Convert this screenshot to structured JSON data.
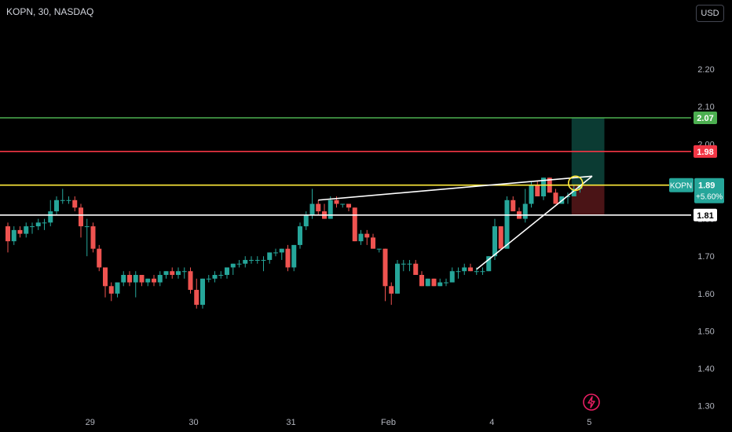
{
  "header": {
    "symbol": "KOPN, 30, NASDAQ"
  },
  "currency": "USD",
  "badge": {
    "ticker": "KOPN",
    "price": "1.89",
    "change": "+5.60%"
  },
  "colors": {
    "up": "#26a69a",
    "down": "#ef5350",
    "background": "#000000",
    "green_line": "#4caf50",
    "red_line": "#f23645",
    "yellow_line": "#ffeb3b",
    "white_line": "#ffffff",
    "target_zone": "#0b3b33",
    "stop_zone": "#4a1416",
    "axis_text": "#b2b5be"
  },
  "chart_data": {
    "type": "candlestick",
    "y_range": [
      1.23,
      2.28
    ],
    "y_ticks": [
      1.3,
      1.4,
      1.5,
      1.6,
      1.7,
      1.8,
      1.9,
      2.0,
      2.1,
      2.2
    ],
    "x_ticks": [
      {
        "label": "29",
        "index": 13
      },
      {
        "label": "30",
        "index": 30
      },
      {
        "label": "31",
        "index": 46
      },
      {
        "label": "Feb",
        "index": 62
      },
      {
        "label": "4",
        "index": 79
      },
      {
        "label": "5",
        "index": 95
      }
    ],
    "candles": [
      [
        1.78,
        1.79,
        1.71,
        1.74
      ],
      [
        1.74,
        1.78,
        1.73,
        1.77
      ],
      [
        1.77,
        1.78,
        1.75,
        1.76
      ],
      [
        1.76,
        1.79,
        1.75,
        1.78
      ],
      [
        1.78,
        1.79,
        1.76,
        1.78
      ],
      [
        1.78,
        1.8,
        1.77,
        1.79
      ],
      [
        1.79,
        1.8,
        1.77,
        1.79
      ],
      [
        1.79,
        1.85,
        1.78,
        1.82
      ],
      [
        1.82,
        1.86,
        1.81,
        1.85
      ],
      [
        1.85,
        1.88,
        1.84,
        1.85
      ],
      [
        1.85,
        1.86,
        1.84,
        1.85
      ],
      [
        1.85,
        1.86,
        1.82,
        1.83
      ],
      [
        1.83,
        1.84,
        1.75,
        1.78
      ],
      [
        1.78,
        1.8,
        1.7,
        1.78
      ],
      [
        1.78,
        1.79,
        1.71,
        1.72
      ],
      [
        1.72,
        1.73,
        1.66,
        1.67
      ],
      [
        1.67,
        1.67,
        1.59,
        1.62
      ],
      [
        1.62,
        1.63,
        1.58,
        1.6
      ],
      [
        1.6,
        1.63,
        1.59,
        1.63
      ],
      [
        1.63,
        1.66,
        1.62,
        1.65
      ],
      [
        1.65,
        1.66,
        1.62,
        1.63
      ],
      [
        1.63,
        1.66,
        1.59,
        1.65
      ],
      [
        1.65,
        1.65,
        1.62,
        1.63
      ],
      [
        1.63,
        1.64,
        1.62,
        1.64
      ],
      [
        1.64,
        1.65,
        1.62,
        1.63
      ],
      [
        1.63,
        1.66,
        1.62,
        1.65
      ],
      [
        1.65,
        1.66,
        1.64,
        1.66
      ],
      [
        1.66,
        1.67,
        1.64,
        1.65
      ],
      [
        1.65,
        1.67,
        1.64,
        1.66
      ],
      [
        1.66,
        1.67,
        1.64,
        1.66
      ],
      [
        1.66,
        1.67,
        1.6,
        1.61
      ],
      [
        1.61,
        1.64,
        1.56,
        1.57
      ],
      [
        1.57,
        1.64,
        1.56,
        1.64
      ],
      [
        1.64,
        1.65,
        1.63,
        1.64
      ],
      [
        1.64,
        1.66,
        1.63,
        1.65
      ],
      [
        1.65,
        1.66,
        1.64,
        1.65
      ],
      [
        1.65,
        1.67,
        1.64,
        1.67
      ],
      [
        1.67,
        1.68,
        1.65,
        1.68
      ],
      [
        1.68,
        1.69,
        1.67,
        1.68
      ],
      [
        1.68,
        1.7,
        1.67,
        1.69
      ],
      [
        1.69,
        1.7,
        1.68,
        1.69
      ],
      [
        1.69,
        1.7,
        1.68,
        1.69
      ],
      [
        1.69,
        1.7,
        1.66,
        1.69
      ],
      [
        1.69,
        1.71,
        1.68,
        1.71
      ],
      [
        1.71,
        1.72,
        1.7,
        1.71
      ],
      [
        1.71,
        1.72,
        1.69,
        1.72
      ],
      [
        1.72,
        1.73,
        1.66,
        1.67
      ],
      [
        1.67,
        1.73,
        1.66,
        1.73
      ],
      [
        1.73,
        1.79,
        1.72,
        1.78
      ],
      [
        1.78,
        1.82,
        1.77,
        1.81
      ],
      [
        1.81,
        1.88,
        1.8,
        1.84
      ],
      [
        1.84,
        1.85,
        1.81,
        1.82
      ],
      [
        1.82,
        1.84,
        1.8,
        1.8
      ],
      [
        1.8,
        1.86,
        1.8,
        1.85
      ],
      [
        1.85,
        1.86,
        1.83,
        1.84
      ],
      [
        1.84,
        1.84,
        1.83,
        1.84
      ],
      [
        1.84,
        1.84,
        1.82,
        1.83
      ],
      [
        1.83,
        1.83,
        1.74,
        1.74
      ],
      [
        1.74,
        1.77,
        1.73,
        1.76
      ],
      [
        1.76,
        1.77,
        1.73,
        1.75
      ],
      [
        1.75,
        1.76,
        1.72,
        1.72
      ],
      [
        1.72,
        1.72,
        1.71,
        1.72
      ],
      [
        1.72,
        1.72,
        1.58,
        1.62
      ],
      [
        1.62,
        1.63,
        1.57,
        1.6
      ],
      [
        1.6,
        1.69,
        1.6,
        1.68
      ],
      [
        1.68,
        1.69,
        1.66,
        1.68
      ],
      [
        1.68,
        1.69,
        1.66,
        1.68
      ],
      [
        1.68,
        1.69,
        1.65,
        1.65
      ],
      [
        1.65,
        1.66,
        1.62,
        1.62
      ],
      [
        1.62,
        1.64,
        1.62,
        1.64
      ],
      [
        1.64,
        1.64,
        1.62,
        1.62
      ],
      [
        1.62,
        1.64,
        1.62,
        1.63
      ],
      [
        1.63,
        1.64,
        1.62,
        1.63
      ],
      [
        1.63,
        1.67,
        1.63,
        1.66
      ],
      [
        1.66,
        1.67,
        1.64,
        1.66
      ],
      [
        1.66,
        1.68,
        1.65,
        1.67
      ],
      [
        1.67,
        1.68,
        1.66,
        1.66
      ],
      [
        1.66,
        1.67,
        1.65,
        1.66
      ],
      [
        1.66,
        1.67,
        1.65,
        1.66
      ],
      [
        1.66,
        1.7,
        1.66,
        1.7
      ],
      [
        1.7,
        1.8,
        1.69,
        1.78
      ],
      [
        1.78,
        1.78,
        1.72,
        1.72
      ],
      [
        1.72,
        1.86,
        1.72,
        1.85
      ],
      [
        1.85,
        1.86,
        1.82,
        1.82
      ],
      [
        1.82,
        1.83,
        1.8,
        1.8
      ],
      [
        1.8,
        1.88,
        1.79,
        1.84
      ],
      [
        1.84,
        1.9,
        1.83,
        1.89
      ],
      [
        1.89,
        1.9,
        1.86,
        1.86
      ],
      [
        1.86,
        1.91,
        1.85,
        1.91
      ],
      [
        1.91,
        1.91,
        1.87,
        1.87
      ],
      [
        1.87,
        1.88,
        1.84,
        1.84
      ],
      [
        1.84,
        1.86,
        1.84,
        1.86
      ],
      [
        1.86,
        1.87,
        1.84,
        1.86
      ],
      [
        1.86,
        1.89,
        1.86,
        1.88
      ],
      [
        1.88,
        1.89,
        1.87,
        1.89
      ]
    ],
    "horizontal_lines": [
      {
        "name": "target",
        "price": 2.07,
        "label": "2.07",
        "color": "#4caf50"
      },
      {
        "name": "resistance",
        "price": 1.98,
        "label": "1.98",
        "color": "#f23645"
      },
      {
        "name": "pivot",
        "price": 1.89,
        "label": "",
        "color": "#ffeb3b"
      },
      {
        "name": "support",
        "price": 1.81,
        "label": "1.81",
        "color": "#ffffff"
      }
    ],
    "trend_lines": [
      {
        "from": [
          51,
          1.85
        ],
        "to": [
          96,
          1.914
        ]
      },
      {
        "from": [
          77,
          1.665
        ],
        "to": [
          96,
          1.914
        ]
      }
    ],
    "position_zone": {
      "from_index": 93,
      "to_index": 98,
      "entry": 1.89,
      "target": 2.07,
      "stop": 1.81
    },
    "marker_circle": {
      "index": 93,
      "price": 1.895
    }
  }
}
